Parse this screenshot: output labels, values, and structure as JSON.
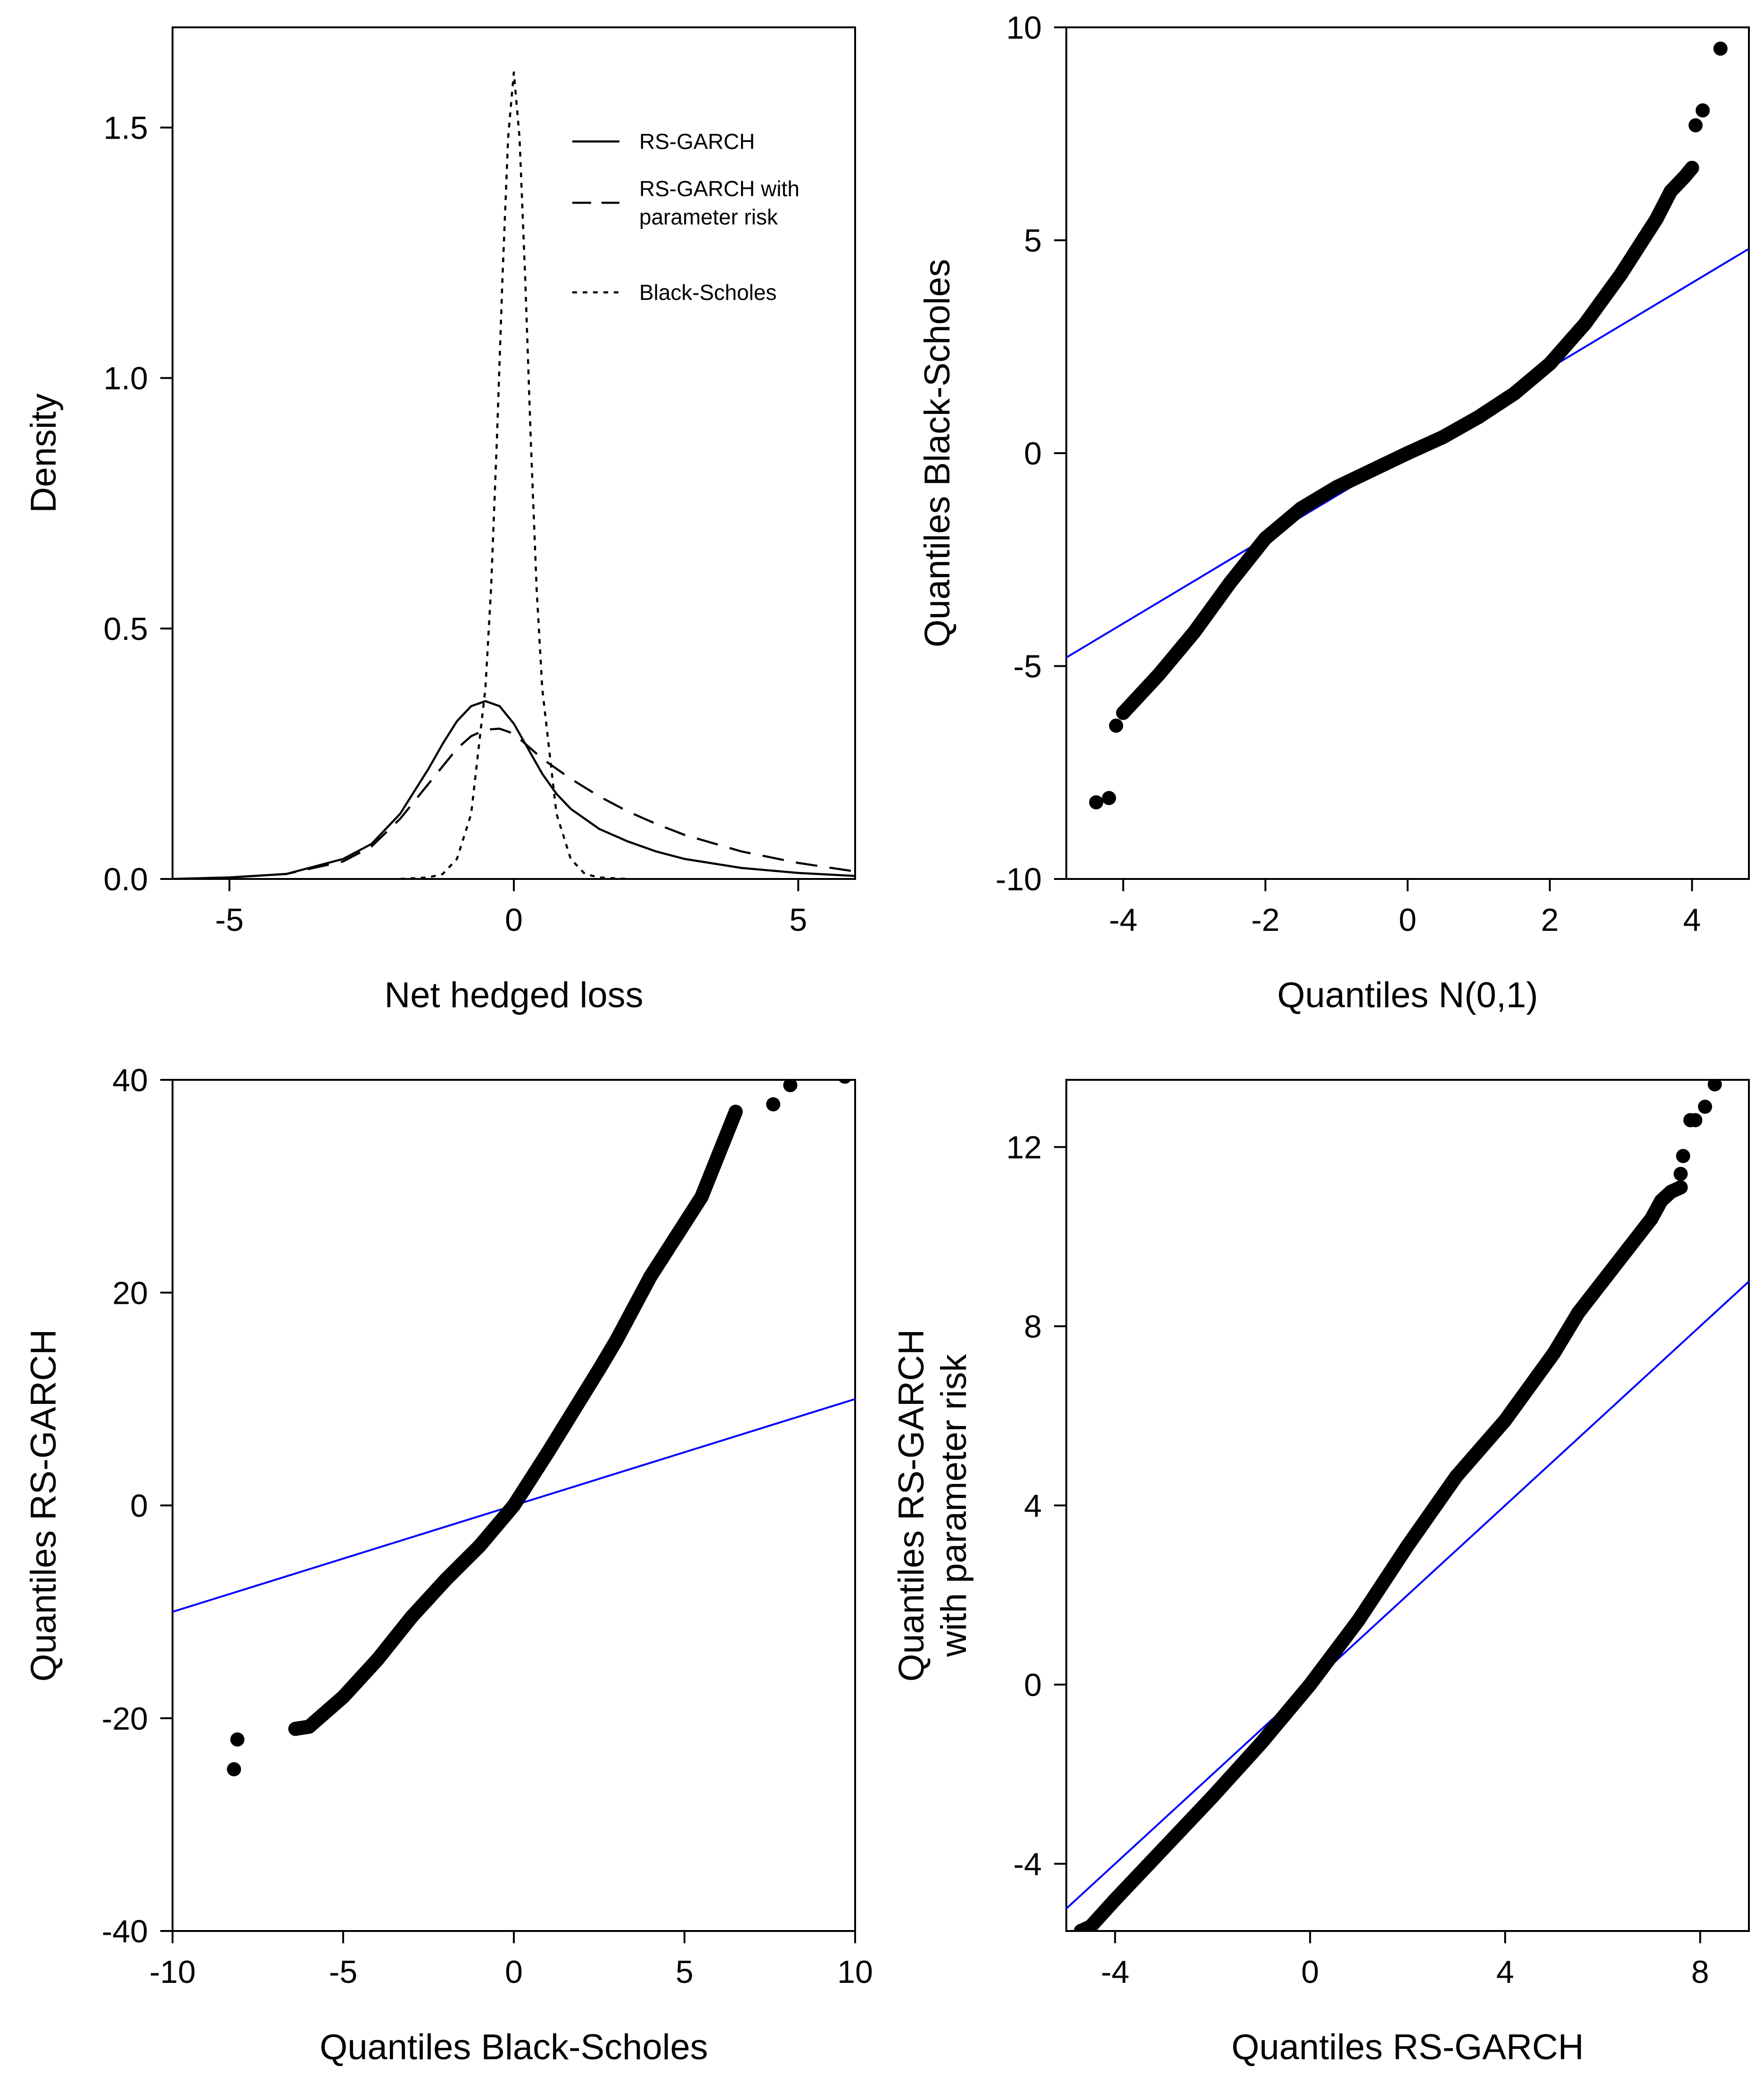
{
  "colors": {
    "ink": "#000000",
    "reference_line": "#0000ff",
    "background": "#ffffff"
  },
  "chart_data": [
    {
      "id": "density",
      "type": "line",
      "title": "",
      "xlabel": "Net hedged loss",
      "ylabel": "Density",
      "xlim": [
        -6,
        6
      ],
      "ylim": [
        0,
        1.7
      ],
      "xticks": [
        -5,
        0,
        5
      ],
      "yticks": [
        0.0,
        0.5,
        1.0,
        1.5
      ],
      "xtick_labels": [
        "-5",
        "0",
        "5"
      ],
      "ytick_labels": [
        "0.0",
        "0.5",
        "1.0",
        "1.5"
      ],
      "legend_position": "top-right",
      "series": [
        {
          "name": "RS-GARCH",
          "label_lines": [
            "RS-GARCH"
          ],
          "dash": "solid",
          "x": [
            -6,
            -5,
            -4,
            -3,
            -2.5,
            -2,
            -1.5,
            -1.25,
            -1,
            -0.75,
            -0.5,
            -0.25,
            0,
            0.25,
            0.5,
            0.75,
            1,
            1.5,
            2,
            2.5,
            3,
            4,
            5,
            6
          ],
          "y": [
            0.0,
            0.003,
            0.01,
            0.04,
            0.07,
            0.13,
            0.22,
            0.27,
            0.315,
            0.345,
            0.355,
            0.345,
            0.31,
            0.26,
            0.21,
            0.17,
            0.14,
            0.1,
            0.075,
            0.055,
            0.04,
            0.022,
            0.012,
            0.006
          ]
        },
        {
          "name": "RS-GARCH with parameter risk",
          "label_lines": [
            "RS-GARCH with",
            "parameter risk"
          ],
          "dash": "dashed",
          "x": [
            -6,
            -5,
            -4,
            -3,
            -2.5,
            -2,
            -1.5,
            -1,
            -0.75,
            -0.5,
            -0.25,
            0,
            0.25,
            0.5,
            1,
            1.5,
            2,
            2.5,
            3,
            4,
            5,
            6
          ],
          "y": [
            0.0,
            0.003,
            0.01,
            0.035,
            0.065,
            0.12,
            0.19,
            0.26,
            0.285,
            0.298,
            0.3,
            0.29,
            0.265,
            0.24,
            0.2,
            0.165,
            0.135,
            0.11,
            0.088,
            0.055,
            0.032,
            0.015
          ]
        },
        {
          "name": "Black-Scholes",
          "label_lines": [
            "Black-Scholes"
          ],
          "dash": "dotted",
          "x": [
            -2,
            -1.5,
            -1.25,
            -1,
            -0.75,
            -0.5,
            -0.4,
            -0.3,
            -0.2,
            -0.1,
            0,
            0.1,
            0.2,
            0.3,
            0.4,
            0.5,
            0.75,
            1,
            1.25,
            1.5,
            2
          ],
          "y": [
            0.0,
            0.003,
            0.01,
            0.04,
            0.13,
            0.38,
            0.58,
            0.87,
            1.2,
            1.48,
            1.61,
            1.48,
            1.2,
            0.87,
            0.58,
            0.38,
            0.13,
            0.04,
            0.01,
            0.003,
            0.0
          ]
        }
      ]
    },
    {
      "id": "qq-normal",
      "type": "scatter",
      "title": "",
      "xlabel": "Quantiles N(0,1)",
      "ylabel": "Quantiles Black-Scholes",
      "xlim": [
        -4.8,
        4.8
      ],
      "ylim": [
        -10,
        10
      ],
      "xticks": [
        -4,
        -2,
        0,
        2,
        4
      ],
      "yticks": [
        -10,
        -5,
        0,
        5,
        10
      ],
      "xtick_labels": [
        "-4",
        "-2",
        "0",
        "2",
        "4"
      ],
      "ytick_labels": [
        "-10",
        "-5",
        "0",
        "5",
        "10"
      ],
      "reference_line": {
        "x": [
          -4.8,
          4.8
        ],
        "y": [
          -4.8,
          4.8
        ]
      },
      "curve": {
        "x": [
          -4.0,
          -3.5,
          -3.0,
          -2.5,
          -2.0,
          -1.5,
          -1.0,
          -0.5,
          0,
          0.5,
          1.0,
          1.5,
          2.0,
          2.5,
          3.0,
          3.5,
          3.7,
          3.9,
          4.0
        ],
        "y": [
          -6.1,
          -5.2,
          -4.2,
          -3.05,
          -2.0,
          -1.3,
          -0.8,
          -0.4,
          0,
          0.38,
          0.85,
          1.4,
          2.1,
          3.05,
          4.2,
          5.5,
          6.15,
          6.5,
          6.7
        ]
      },
      "outliers": {
        "x": [
          -4.38,
          -4.2,
          -4.1,
          4.05,
          4.15,
          4.4
        ],
        "y": [
          -8.2,
          -8.1,
          -6.4,
          7.7,
          8.05,
          9.5
        ]
      }
    },
    {
      "id": "qq-bs-rsgarch",
      "type": "scatter",
      "title": "",
      "xlabel": "Quantiles Black-Scholes",
      "ylabel": "Quantiles RS-GARCH",
      "xlim": [
        -10,
        10
      ],
      "ylim": [
        -40,
        40
      ],
      "xticks": [
        -10,
        -5,
        0,
        5,
        10
      ],
      "yticks": [
        -40,
        -20,
        0,
        20,
        40
      ],
      "xtick_labels": [
        "-10",
        "-5",
        "0",
        "5",
        "10"
      ],
      "ytick_labels": [
        "-40",
        "-20",
        "0",
        "20",
        "40"
      ],
      "reference_line": {
        "x": [
          -10,
          10
        ],
        "y": [
          -10,
          10
        ]
      },
      "curve": {
        "x": [
          -6.4,
          -6.0,
          -5.0,
          -4.0,
          -3.0,
          -2.0,
          -1.0,
          0,
          0.5,
          1.0,
          1.5,
          2.0,
          2.5,
          3.0,
          3.5,
          4.0,
          4.5,
          5.0,
          5.5,
          6.0,
          6.5
        ],
        "y": [
          -21.0,
          -20.8,
          -18.0,
          -14.5,
          -10.5,
          -7.0,
          -3.8,
          0,
          2.5,
          5.0,
          7.6,
          10.2,
          12.8,
          15.5,
          18.5,
          21.5,
          24.0,
          26.5,
          29.0,
          33.0,
          37.0
        ]
      },
      "outliers": {
        "x": [
          -8.2,
          -8.1,
          7.6,
          8.1,
          9.7
        ],
        "y": [
          -24.8,
          -22.0,
          37.7,
          39.5,
          40.3
        ]
      }
    },
    {
      "id": "qq-rsgarch-param",
      "type": "scatter",
      "title": "",
      "xlabel": "Quantiles RS-GARCH",
      "ylabel_lines": [
        "Quantiles RS-GARCH",
        "with parameter risk"
      ],
      "xlim": [
        -5,
        9
      ],
      "ylim": [
        -5.5,
        13.5
      ],
      "xticks": [
        -4,
        0,
        4,
        8
      ],
      "yticks": [
        -4,
        0,
        4,
        8,
        12
      ],
      "xtick_labels": [
        "-4",
        "0",
        "4",
        "8"
      ],
      "ytick_labels": [
        "-4",
        "0",
        "4",
        "8",
        "12"
      ],
      "reference_line": {
        "x": [
          -5,
          9
        ],
        "y": [
          -5,
          9
        ]
      },
      "curve": {
        "x": [
          -4.7,
          -4.5,
          -4.0,
          -3.0,
          -2.0,
          -1.0,
          0,
          1.0,
          2.0,
          3.0,
          4.0,
          5.0,
          5.5,
          6.0,
          6.5,
          7.0,
          7.2,
          7.4,
          7.6
        ],
        "y": [
          -5.5,
          -5.4,
          -4.8,
          -3.65,
          -2.5,
          -1.3,
          0,
          1.45,
          3.1,
          4.65,
          5.9,
          7.4,
          8.3,
          9.0,
          9.7,
          10.4,
          10.8,
          11.0,
          11.1
        ]
      },
      "outliers": {
        "x": [
          7.6,
          7.65,
          7.8,
          7.9,
          8.1,
          8.3
        ],
        "y": [
          11.4,
          11.8,
          12.6,
          12.6,
          12.9,
          13.4
        ]
      }
    }
  ]
}
